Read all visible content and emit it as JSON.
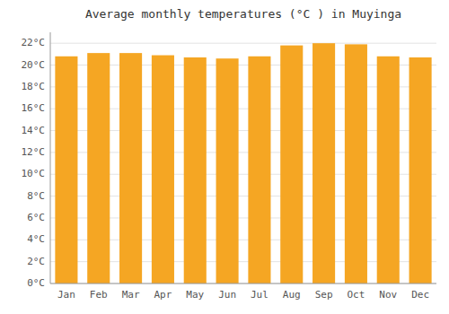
{
  "chart_data": {
    "type": "bar",
    "title": "Average monthly temperatures (°C ) in Muyinga",
    "categories": [
      "Jan",
      "Feb",
      "Mar",
      "Apr",
      "May",
      "Jun",
      "Jul",
      "Aug",
      "Sep",
      "Oct",
      "Nov",
      "Dec"
    ],
    "values": [
      20.8,
      21.1,
      21.1,
      20.9,
      20.7,
      20.6,
      20.8,
      21.8,
      22.0,
      21.9,
      20.8,
      20.7
    ],
    "color": "#f5a623",
    "ylim": [
      0,
      23
    ],
    "yticks": [
      {
        "value": 0,
        "label": "0°C"
      },
      {
        "value": 2,
        "label": "2°C"
      },
      {
        "value": 4,
        "label": "4°C"
      },
      {
        "value": 6,
        "label": "6°C"
      },
      {
        "value": 8,
        "label": "8°C"
      },
      {
        "value": 10,
        "label": "10°C"
      },
      {
        "value": 12,
        "label": "12°C"
      },
      {
        "value": 14,
        "label": "14°C"
      },
      {
        "value": 16,
        "label": "16°C"
      },
      {
        "value": 18,
        "label": "18°C"
      },
      {
        "value": 20,
        "label": "20°C"
      },
      {
        "value": 22,
        "label": "22°C"
      }
    ],
    "grid": true
  }
}
